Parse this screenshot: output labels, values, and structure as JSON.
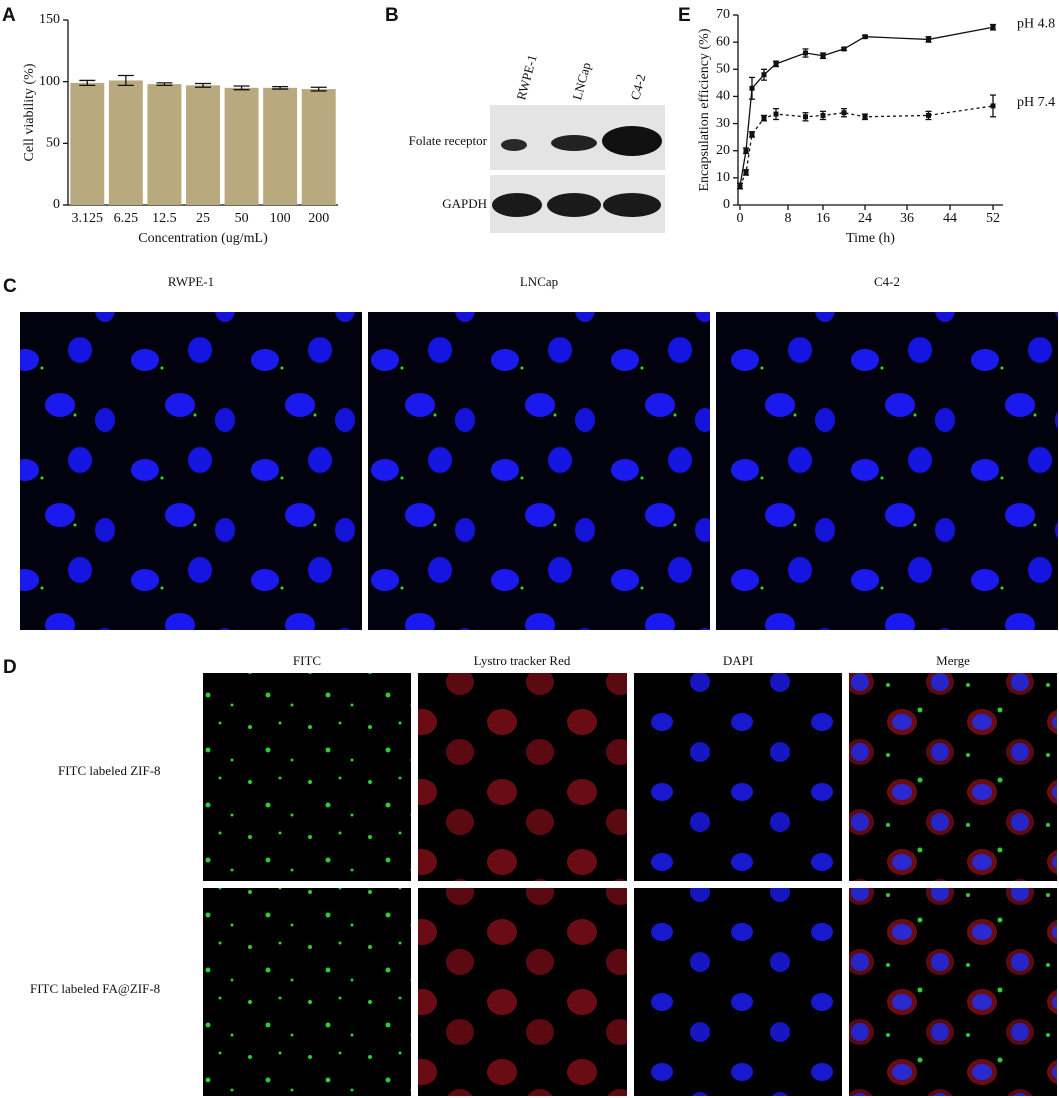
{
  "panel_labels": [
    "A",
    "B",
    "C",
    "D",
    "E"
  ],
  "chart_data": [
    {
      "type": "bar",
      "ylabel": "Cell viability (%)",
      "xlabel": "Concentration (ug/mL)",
      "categories": [
        "3.125",
        "6.25",
        "12.5",
        "25",
        "50",
        "100",
        "200"
      ],
      "values": [
        99,
        101,
        98,
        97,
        95,
        95,
        94
      ],
      "errors": [
        2,
        4,
        1,
        1.5,
        1.5,
        1,
        1.5
      ],
      "color": "#b8aa7e",
      "ylim": [
        0,
        150
      ],
      "yticks": [
        0,
        50,
        100,
        150
      ]
    },
    {
      "type": "line",
      "ylabel": "Encapsulation efficiency (%)",
      "xlabel": "Time (h)",
      "x": [
        0,
        1,
        2,
        4,
        6,
        12,
        16,
        20,
        24,
        40,
        52
      ],
      "series": [
        {
          "name": "pH 4.8",
          "color": "#111111",
          "dash": false,
          "values": [
            7,
            20,
            43,
            48,
            52,
            56,
            55,
            57.5,
            62,
            61,
            65.5
          ],
          "errors": [
            1,
            1,
            4,
            2,
            1,
            1.5,
            1,
            0.5,
            0.5,
            1,
            1
          ]
        },
        {
          "name": "pH 7.4",
          "color": "#111111",
          "dash": true,
          "values": [
            7,
            12,
            26,
            32,
            33.5,
            32.5,
            33,
            34,
            32.5,
            33,
            36.5
          ],
          "errors": [
            1,
            1,
            1,
            1,
            2,
            1.5,
            1.5,
            1.5,
            1,
            1.5,
            4
          ]
        }
      ],
      "xlim": [
        0,
        52
      ],
      "xticks": [
        0,
        8,
        16,
        24,
        36,
        44,
        52
      ],
      "ylim": [
        0,
        70
      ],
      "yticks": [
        0,
        10,
        20,
        30,
        40,
        50,
        60,
        70
      ]
    }
  ],
  "blot": {
    "lanes": [
      "RWPE-1",
      "LNCap",
      "C4-2"
    ],
    "rows": [
      "Folate receptor",
      "GAPDH"
    ]
  },
  "panel_c": {
    "columns": [
      "RWPE-1",
      "LNCap",
      "C4-2"
    ]
  },
  "panel_d": {
    "columns": [
      "FITC",
      "Lystro tracker Red",
      "DAPI",
      "Merge"
    ],
    "rows": [
      "FITC labeled ZIF-8",
      "FITC labeled FA@ZIF-8"
    ]
  }
}
